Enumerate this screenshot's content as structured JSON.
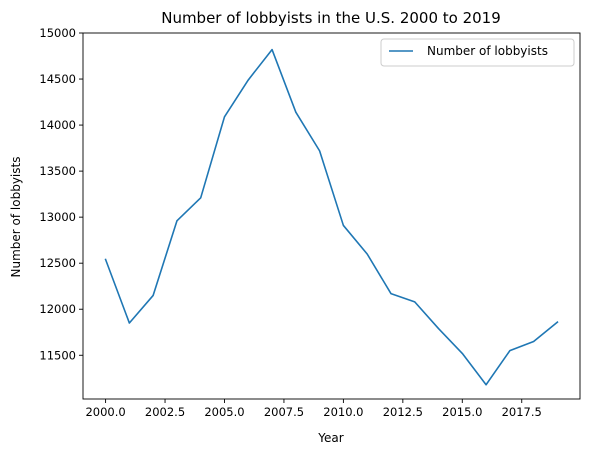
{
  "chart_data": {
    "type": "line",
    "title": "Number of lobbyists in the U.S. 2000 to 2019",
    "xlabel": "Year",
    "ylabel": "Number of lobbyists",
    "xlim": [
      1999.05,
      2019.95
    ],
    "ylim": [
      11025,
      15000
    ],
    "xticks": [
      2000.0,
      2002.5,
      2005.0,
      2007.5,
      2010.0,
      2012.5,
      2015.0,
      2017.5
    ],
    "xtick_labels": [
      "2000.0",
      "2002.5",
      "2005.0",
      "2007.5",
      "2010.0",
      "2012.5",
      "2015.0",
      "2017.5"
    ],
    "yticks": [
      11500,
      12000,
      12500,
      13000,
      13500,
      14000,
      14500,
      15000
    ],
    "ytick_labels": [
      "11500",
      "12000",
      "12500",
      "13000",
      "13500",
      "14000",
      "14500",
      "15000"
    ],
    "grid": false,
    "legend_position": "top-right",
    "series": [
      {
        "name": "Number of lobbyists",
        "color": "#1f77b4",
        "x": [
          2000,
          2001,
          2002,
          2003,
          2004,
          2005,
          2006,
          2007,
          2008,
          2009,
          2010,
          2011,
          2012,
          2013,
          2014,
          2015,
          2016,
          2017,
          2018,
          2019
        ],
        "y": [
          12540,
          11850,
          12150,
          12960,
          13210,
          14090,
          14490,
          14820,
          14140,
          13720,
          12910,
          12600,
          12170,
          12080,
          11790,
          11520,
          11180,
          11550,
          11650,
          11860
        ]
      }
    ]
  }
}
